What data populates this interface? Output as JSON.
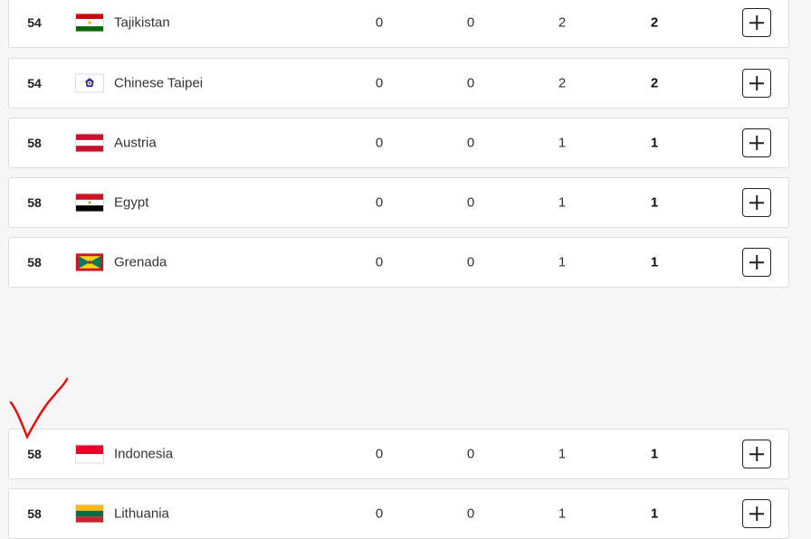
{
  "rows": [
    {
      "rank": "54",
      "country": "Tajikistan",
      "flag": "tajikistan-flag",
      "gold": "0",
      "silver": "0",
      "bronze": "2",
      "total": "2"
    },
    {
      "rank": "54",
      "country": "Chinese Taipei",
      "flag": "chinese-taipei-flag",
      "gold": "0",
      "silver": "0",
      "bronze": "2",
      "total": "2"
    },
    {
      "rank": "58",
      "country": "Austria",
      "flag": "austria-flag",
      "gold": "0",
      "silver": "0",
      "bronze": "1",
      "total": "1"
    },
    {
      "rank": "58",
      "country": "Egypt",
      "flag": "egypt-flag",
      "gold": "0",
      "silver": "0",
      "bronze": "1",
      "total": "1"
    },
    {
      "rank": "58",
      "country": "Grenada",
      "flag": "grenada-flag",
      "gold": "0",
      "silver": "0",
      "bronze": "1",
      "total": "1"
    },
    {
      "rank": "58",
      "country": "Indonesia",
      "flag": "indonesia-flag",
      "gold": "0",
      "silver": "0",
      "bronze": "1",
      "total": "1"
    },
    {
      "rank": "58",
      "country": "Lithuania",
      "flag": "lithuania-flag",
      "gold": "0",
      "silver": "0",
      "bronze": "1",
      "total": "1"
    }
  ],
  "annotation": {
    "mark": "checkmark",
    "color": "#e8100c"
  }
}
